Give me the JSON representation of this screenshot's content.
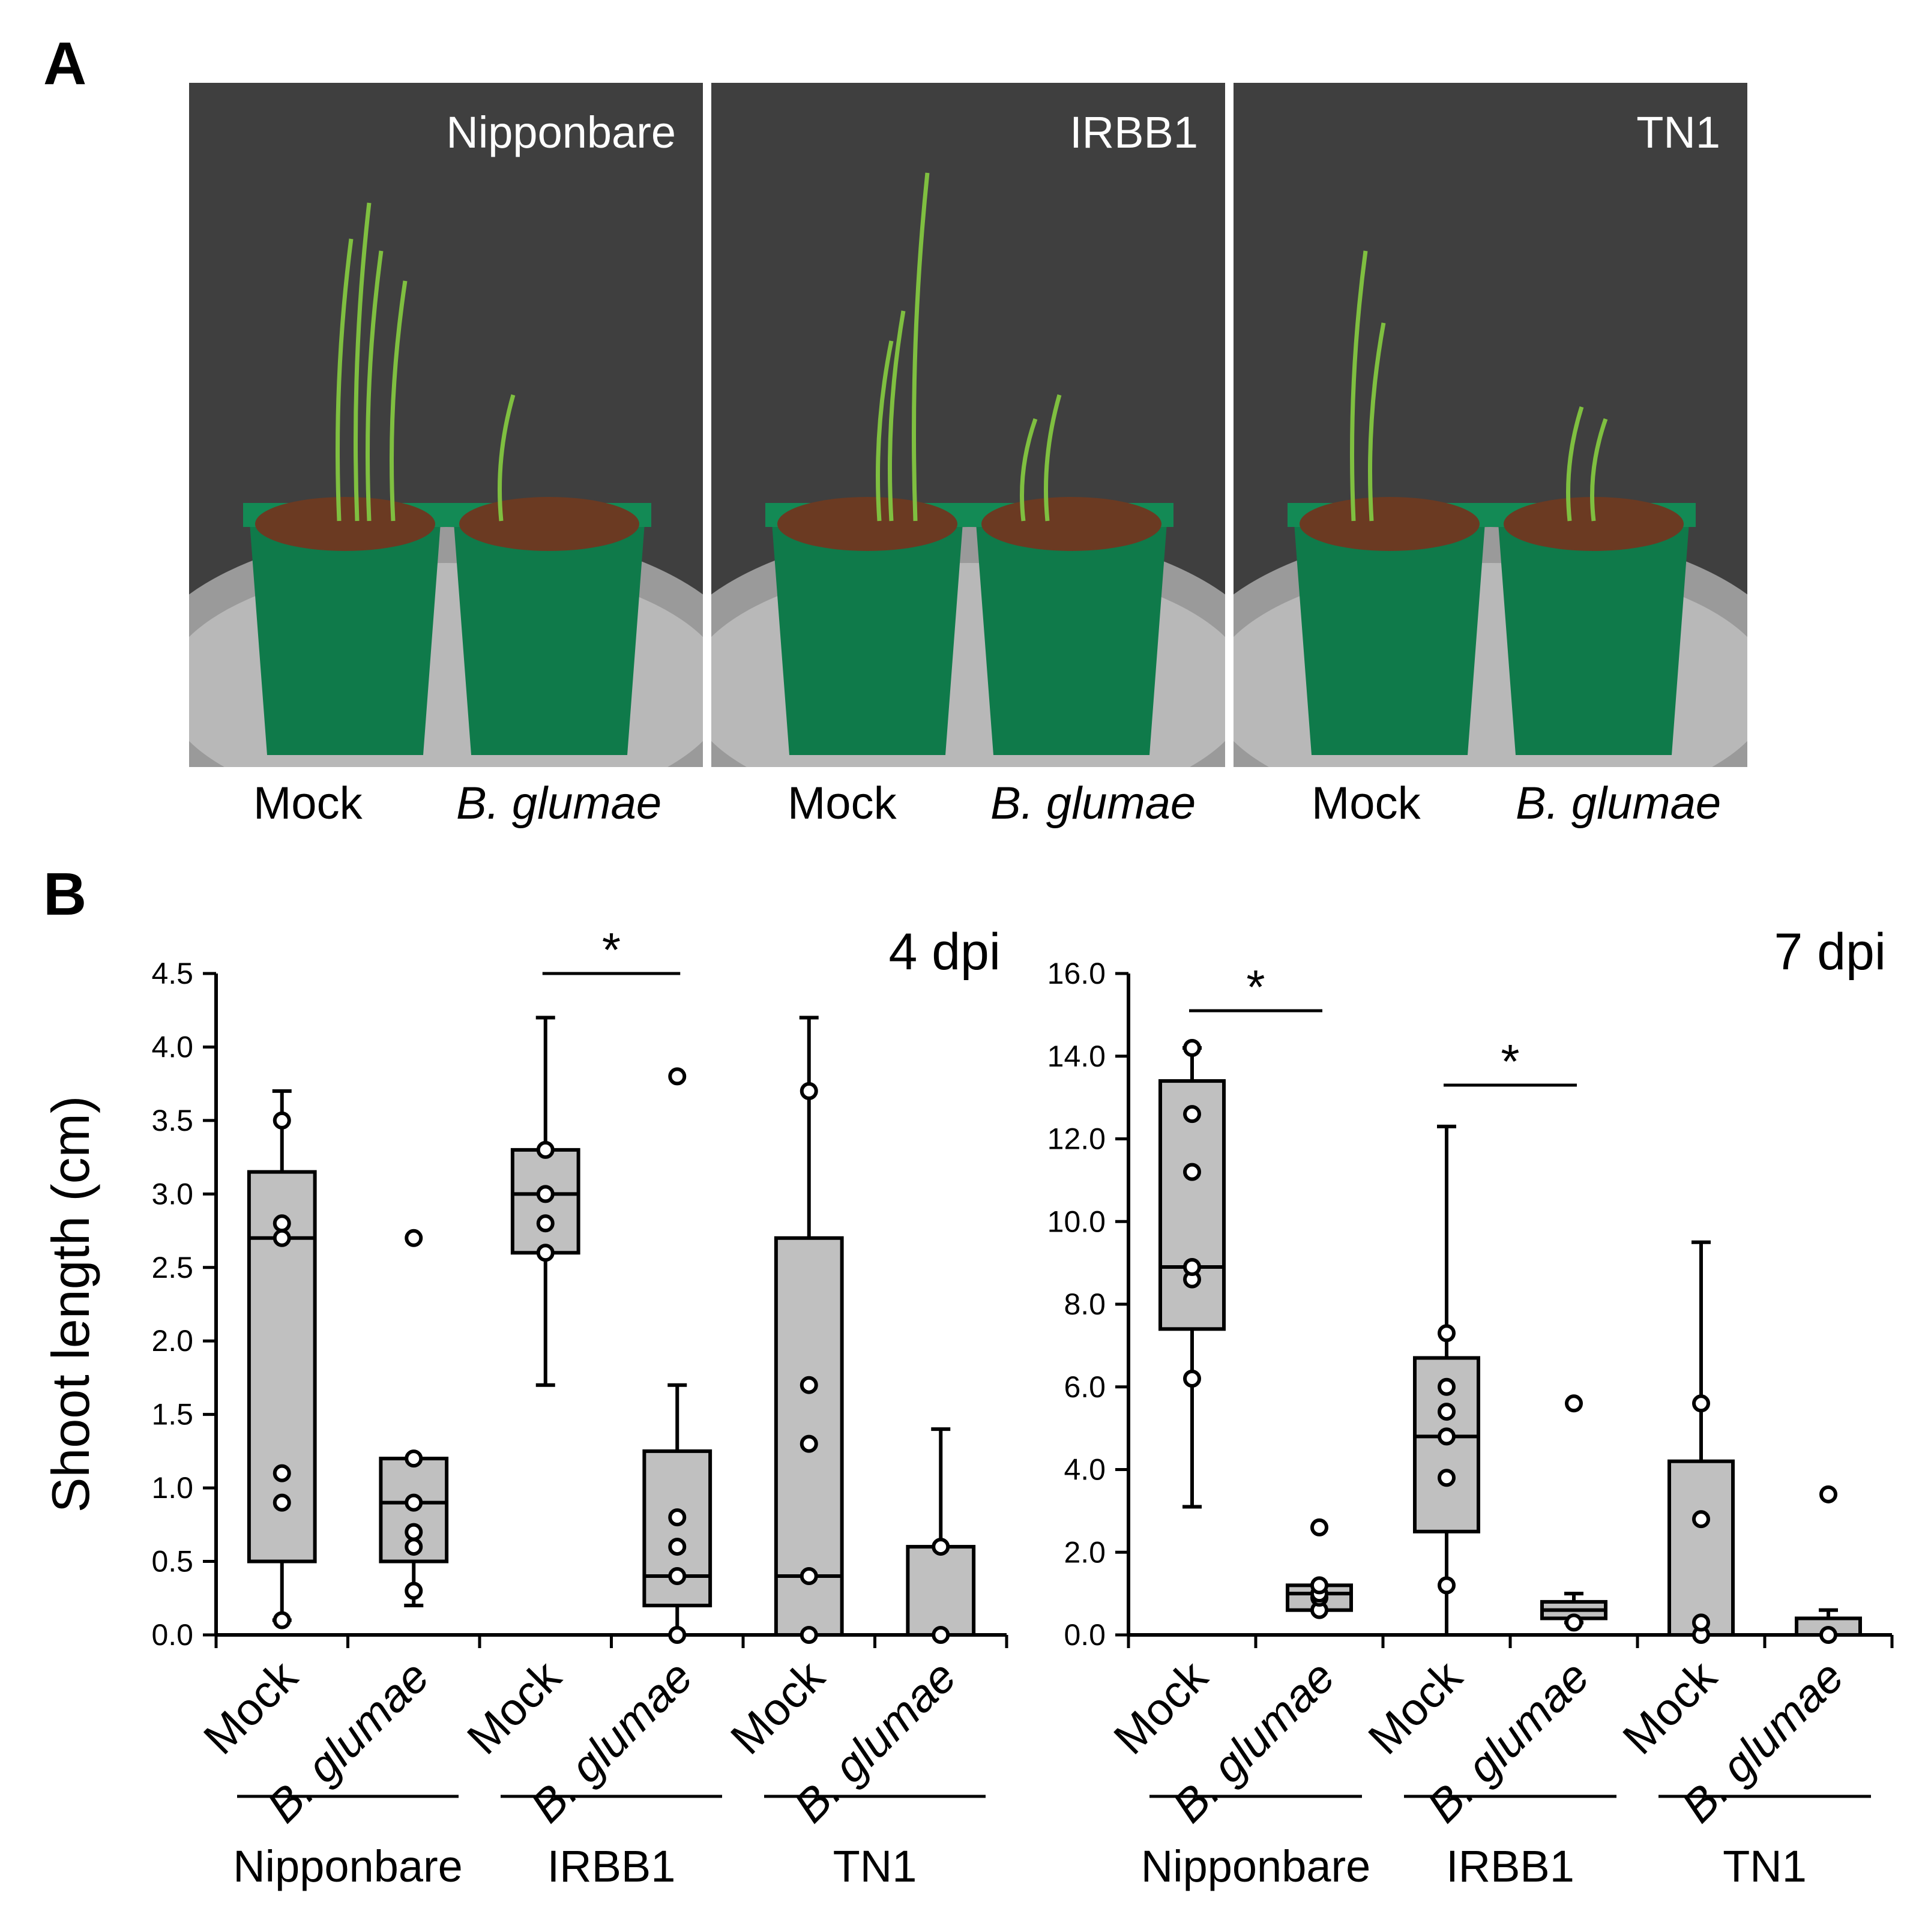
{
  "panels": {
    "a": "A",
    "b": "B"
  },
  "photos": [
    {
      "cultivar": "Nipponbare",
      "left": "Mock",
      "right": "B. glumae"
    },
    {
      "cultivar": "IRBB1",
      "left": "Mock",
      "right": "B. glumae"
    },
    {
      "cultivar": "TN1",
      "left": "Mock",
      "right": "B. glumae"
    }
  ],
  "colors": {
    "box_fill": "#c0c0c0",
    "stroke": "#000000",
    "pot": "#0f7a4a",
    "soil": "#6b3a22",
    "leaf": "#7fbf40",
    "backdrop": "#3f3f3f"
  },
  "chart_data": [
    {
      "type": "box",
      "title": "4 dpi",
      "ylabel": "Shoot length (cm)",
      "ylim": [
        0,
        4.5
      ],
      "yticks": [
        "0.0",
        "0.5",
        "1.0",
        "1.5",
        "2.0",
        "2.5",
        "3.0",
        "3.5",
        "4.0",
        "4.5"
      ],
      "categories": [
        "Mock",
        "B. glumae",
        "Mock",
        "B. glumae",
        "Mock",
        "B. glumae"
      ],
      "groups": [
        "Nipponbare",
        "IRBB1",
        "TN1"
      ],
      "boxes": [
        {
          "q1": 0.5,
          "median": 2.7,
          "q3": 3.15,
          "wlo": 0.1,
          "whi": 3.7,
          "points": [
            0.1,
            0.9,
            1.1,
            2.7,
            2.8,
            3.5
          ]
        },
        {
          "q1": 0.5,
          "median": 0.9,
          "q3": 1.2,
          "wlo": 0.2,
          "whi": 1.2,
          "points": [
            0.3,
            0.6,
            0.7,
            0.9,
            1.2,
            2.7
          ]
        },
        {
          "q1": 2.6,
          "median": 3.0,
          "q3": 3.3,
          "wlo": 1.7,
          "whi": 4.2,
          "points": [
            2.6,
            2.8,
            3.0,
            3.3
          ]
        },
        {
          "q1": 0.2,
          "median": 0.4,
          "q3": 1.25,
          "wlo": 0.0,
          "whi": 1.7,
          "points": [
            0.0,
            0.4,
            0.6,
            0.8,
            3.8
          ]
        },
        {
          "q1": 0.0,
          "median": 0.4,
          "q3": 2.7,
          "wlo": 0.0,
          "whi": 4.2,
          "points": [
            0.0,
            0.4,
            1.3,
            1.7,
            3.7
          ]
        },
        {
          "q1": 0.0,
          "median": 0.0,
          "q3": 0.6,
          "wlo": 0.0,
          "whi": 1.4,
          "points": [
            0.0,
            0.6
          ]
        }
      ],
      "significance": [
        {
          "from": 2,
          "to": 3,
          "y": 4.5,
          "label": "*"
        }
      ]
    },
    {
      "type": "box",
      "title": "7 dpi",
      "ylim": [
        0,
        16
      ],
      "yticks": [
        "0.0",
        "2.0",
        "4.0",
        "6.0",
        "8.0",
        "10.0",
        "12.0",
        "14.0",
        "16.0"
      ],
      "categories": [
        "Mock",
        "B. glumae",
        "Mock",
        "B. glumae",
        "Mock",
        "B. glumae"
      ],
      "groups": [
        "Nipponbare",
        "IRBB1",
        "TN1"
      ],
      "boxes": [
        {
          "q1": 7.4,
          "median": 8.9,
          "q3": 13.4,
          "wlo": 3.1,
          "whi": 14.2,
          "points": [
            6.2,
            8.6,
            8.9,
            11.2,
            12.6,
            14.2
          ]
        },
        {
          "q1": 0.6,
          "median": 1.0,
          "q3": 1.2,
          "wlo": 0.6,
          "whi": 1.2,
          "points": [
            0.6,
            0.9,
            1.0,
            1.2,
            2.6
          ]
        },
        {
          "q1": 2.5,
          "median": 4.8,
          "q3": 6.7,
          "wlo": 0.0,
          "whi": 12.3,
          "points": [
            1.2,
            3.8,
            4.8,
            5.4,
            6.0,
            7.3
          ]
        },
        {
          "q1": 0.4,
          "median": 0.6,
          "q3": 0.8,
          "wlo": 0.3,
          "whi": 1.0,
          "points": [
            0.3,
            5.6
          ]
        },
        {
          "q1": 0.0,
          "median": 0.0,
          "q3": 4.2,
          "wlo": 0.0,
          "whi": 9.5,
          "points": [
            0.0,
            0.3,
            2.8,
            5.6
          ]
        },
        {
          "q1": 0.0,
          "median": 0.0,
          "q3": 0.4,
          "wlo": 0.0,
          "whi": 0.6,
          "points": [
            0.0,
            3.4
          ]
        }
      ],
      "significance": [
        {
          "from": 0,
          "to": 1,
          "y": 15.1,
          "label": "*"
        },
        {
          "from": 2,
          "to": 3,
          "y": 13.3,
          "label": "*"
        }
      ]
    }
  ]
}
